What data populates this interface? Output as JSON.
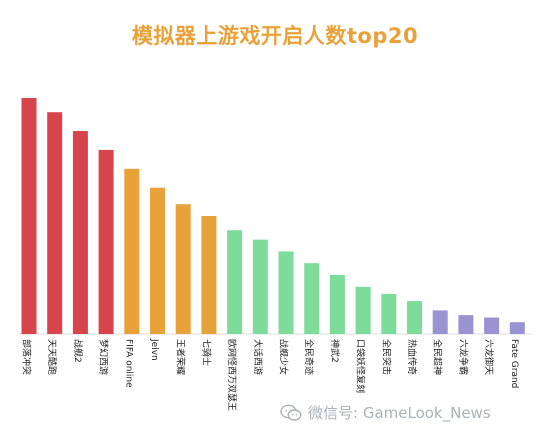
{
  "chart_data": {
    "type": "bar",
    "title": "模拟器上游戏开启人数top20",
    "xlabel": "",
    "ylabel": "",
    "categories": [
      "部落冲突",
      "天天酷跑",
      "战舰2",
      "梦幻西游",
      "FIFA online",
      "Jelvn",
      "王者荣耀",
      "七骑士",
      "欧网怪西万双瑟王",
      "大话西游",
      "战舰少女",
      "全民奇迹",
      "神武2",
      "口袋妖怪复刻",
      "全民突击",
      "热血传奇",
      "全民超神",
      "六龙争霸",
      "六龙御天",
      "Fate Grand"
    ],
    "values": [
      100,
      94,
      86,
      78,
      70,
      62,
      55,
      50,
      44,
      40,
      35,
      30,
      25,
      20,
      17,
      14,
      10,
      8,
      7,
      5
    ],
    "ylim": [
      0,
      100
    ],
    "grid": false,
    "legend": "none",
    "colors": [
      "#d8444b",
      "#d8444b",
      "#d8444b",
      "#d8444b",
      "#e9a13a",
      "#e9a13a",
      "#e9a13a",
      "#e9a13a",
      "#7edc9a",
      "#7edc9a",
      "#7edc9a",
      "#7edc9a",
      "#7edc9a",
      "#7edc9a",
      "#7edc9a",
      "#7edc9a",
      "#9a93d2",
      "#9a93d2",
      "#9a93d2",
      "#9a93d2"
    ]
  },
  "watermark": {
    "icon": "wechat-icon",
    "text": "微信号: GameLook_News"
  }
}
